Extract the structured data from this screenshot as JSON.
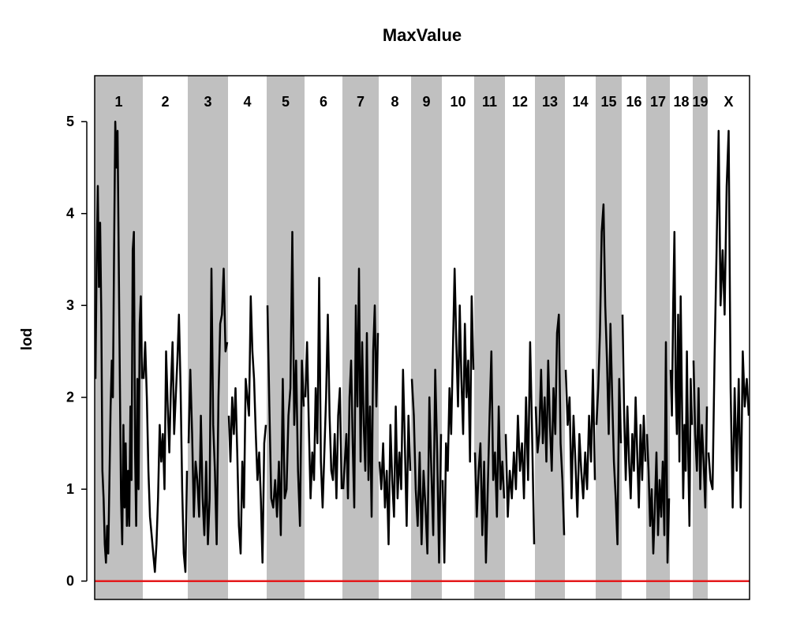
{
  "chart_data": {
    "type": "line",
    "title": "MaxValue",
    "xlabel": "",
    "ylabel": "lod",
    "ylim": [
      -0.2,
      5.5
    ],
    "yticks": [
      0,
      1,
      2,
      3,
      4,
      5
    ],
    "threshold": {
      "value": 0,
      "color": "#e41a1c"
    },
    "colors": {
      "line": "#000000",
      "band": "#c0c0c0",
      "threshold": "#e41a1c"
    },
    "chromosomes": [
      {
        "label": "1",
        "shaded": true,
        "values": [
          2.2,
          3.5,
          4.3,
          3.2,
          3.9,
          2.9,
          1.2,
          0.9,
          0.4,
          0.2,
          0.6,
          0.3,
          1.1,
          1.9,
          2.4,
          2.0,
          3.6,
          5.0,
          4.5,
          4.9,
          3.5,
          2.1,
          0.9,
          0.4,
          1.7,
          0.8,
          1.5,
          0.6,
          1.2,
          0.6,
          1.9,
          1.1,
          3.6,
          3.8,
          1.4,
          0.6,
          2.2,
          1.0,
          2.8,
          3.1,
          2.2
        ]
      },
      {
        "label": "2",
        "shaded": false,
        "values": [
          2.2,
          2.6,
          2.0,
          1.2,
          0.7,
          0.5,
          0.3,
          0.1,
          0.4,
          0.9,
          1.7,
          1.3,
          1.6,
          1.0,
          2.5,
          1.9,
          1.4,
          2.1,
          2.6,
          1.6,
          2.0,
          2.4,
          2.9,
          2.1,
          1.0,
          0.3,
          0.1,
          1.2
        ]
      },
      {
        "label": "3",
        "shaded": true,
        "values": [
          1.5,
          2.3,
          1.6,
          0.7,
          1.3,
          1.1,
          0.7,
          1.8,
          0.9,
          0.5,
          1.3,
          0.4,
          0.9,
          3.4,
          1.7,
          1.2,
          0.4,
          2.0,
          2.8,
          2.9,
          3.4,
          2.5,
          2.6
        ]
      },
      {
        "label": "4",
        "shaded": false,
        "values": [
          1.8,
          1.3,
          2.0,
          1.6,
          2.1,
          1.4,
          0.6,
          0.3,
          1.3,
          0.8,
          2.2,
          2.0,
          1.8,
          3.1,
          2.5,
          2.2,
          1.6,
          1.1,
          1.4,
          0.9,
          0.2,
          1.5,
          1.7
        ]
      },
      {
        "label": "5",
        "shaded": true,
        "values": [
          3.0,
          1.9,
          0.9,
          0.8,
          1.1,
          0.7,
          1.3,
          0.5,
          2.2,
          0.9,
          1.0,
          1.8,
          2.1,
          3.8,
          1.7,
          2.4,
          1.2,
          0.6,
          2.4,
          1.9
        ]
      },
      {
        "label": "6",
        "shaded": false,
        "values": [
          2.0,
          2.6,
          1.7,
          0.9,
          1.4,
          1.1,
          2.1,
          1.5,
          3.3,
          1.3,
          0.8,
          1.4,
          2.0,
          2.9,
          1.8,
          1.2,
          1.1,
          1.6,
          0.9,
          1.8,
          2.1,
          1.0
        ]
      },
      {
        "label": "7",
        "shaded": true,
        "values": [
          1.0,
          1.3,
          1.6,
          0.9,
          2.0,
          2.4,
          1.5,
          0.8,
          3.0,
          1.9,
          3.4,
          1.3,
          2.6,
          1.7,
          1.2,
          2.7,
          1.1,
          1.9,
          0.7,
          2.5,
          3.0,
          1.9,
          2.7
        ]
      },
      {
        "label": "8",
        "shaded": false,
        "values": [
          1.3,
          1.0,
          1.5,
          0.8,
          1.2,
          0.4,
          1.7,
          1.1,
          0.7,
          1.9,
          0.9,
          1.4,
          1.0,
          2.3,
          1.5,
          0.6,
          1.8,
          1.2
        ]
      },
      {
        "label": "9",
        "shaded": true,
        "values": [
          2.2,
          1.8,
          1.0,
          0.6,
          1.4,
          0.4,
          1.2,
          0.8,
          0.3,
          2.0,
          1.2,
          0.5,
          2.3,
          1.4,
          0.2,
          1.6
        ]
      },
      {
        "label": "10",
        "shaded": false,
        "values": [
          1.1,
          0.2,
          1.5,
          1.2,
          2.1,
          1.6,
          2.5,
          3.4,
          2.6,
          1.9,
          3.0,
          2.2,
          1.6,
          2.8,
          2.0,
          2.4,
          1.3,
          3.1,
          2.3
        ]
      },
      {
        "label": "11",
        "shaded": true,
        "values": [
          1.4,
          0.7,
          1.2,
          1.5,
          0.5,
          1.3,
          0.2,
          1.0,
          1.8,
          2.5,
          1.1,
          1.4,
          0.7,
          1.9,
          1.0,
          1.3,
          0.9
        ]
      },
      {
        "label": "12",
        "shaded": false,
        "values": [
          1.6,
          0.7,
          1.2,
          0.9,
          1.4,
          1.0,
          1.8,
          1.2,
          1.5,
          0.9,
          2.0,
          1.1,
          2.6,
          1.6,
          0.4
        ]
      },
      {
        "label": "13",
        "shaded": true,
        "values": [
          1.9,
          1.4,
          1.6,
          2.3,
          1.5,
          2.0,
          1.3,
          2.4,
          1.7,
          1.2,
          2.1,
          1.6,
          2.7,
          2.9,
          1.5,
          1.1,
          0.5
        ]
      },
      {
        "label": "14",
        "shaded": false,
        "values": [
          2.3,
          1.7,
          2.0,
          0.9,
          1.8,
          1.3,
          0.7,
          1.6,
          1.2,
          0.9,
          1.4,
          1.0,
          1.8,
          1.3,
          2.3,
          1.1
        ]
      },
      {
        "label": "15",
        "shaded": true,
        "values": [
          1.7,
          2.1,
          2.7,
          3.8,
          4.1,
          3.0,
          2.4,
          1.6,
          2.8,
          2.0,
          1.3,
          0.9,
          0.4,
          2.2,
          1.5
        ]
      },
      {
        "label": "16",
        "shaded": false,
        "values": [
          2.9,
          1.8,
          1.1,
          1.9,
          1.3,
          0.9,
          1.6,
          1.2,
          2.0,
          1.4,
          0.8,
          1.7,
          1.1,
          1.8,
          1.3
        ]
      },
      {
        "label": "17",
        "shaded": true,
        "values": [
          1.6,
          1.2,
          0.6,
          1.0,
          0.3,
          0.8,
          1.4,
          0.5,
          1.1,
          0.7,
          1.3,
          0.5,
          2.6,
          0.2,
          0.9
        ]
      },
      {
        "label": "18",
        "shaded": false,
        "values": [
          2.3,
          1.8,
          3.0,
          3.8,
          2.1,
          1.6,
          2.9,
          1.3,
          3.1,
          2.0,
          0.9,
          1.7,
          1.2,
          2.5,
          1.4,
          0.6,
          2.2,
          1.7
        ]
      },
      {
        "label": "19",
        "shaded": true,
        "values": [
          2.4,
          1.6,
          1.2,
          2.1,
          1.0,
          1.7,
          1.3,
          0.8,
          1.9
        ]
      },
      {
        "label": "X",
        "shaded": false,
        "values": [
          1.4,
          1.1,
          1.0,
          2.4,
          3.6,
          4.9,
          3.0,
          3.6,
          2.9,
          4.3,
          4.9,
          2.1,
          0.8,
          2.1,
          1.2,
          2.2,
          0.8,
          2.5,
          1.9,
          2.2,
          1.8
        ]
      }
    ]
  }
}
